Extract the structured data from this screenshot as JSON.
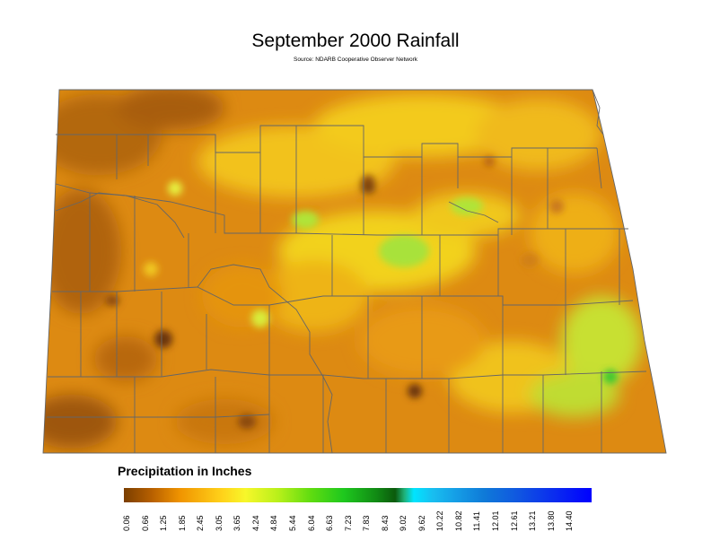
{
  "map": {
    "title": "September 2000 Rainfall",
    "subtitle": "Source: NDARB Cooperative Observer Network"
  },
  "legend": {
    "title": "Precipitation in Inches",
    "ticks": [
      "0.06",
      "0.66",
      "1.25",
      "1.85",
      "2.45",
      "3.05",
      "3.65",
      "4.24",
      "4.84",
      "5.44",
      "6.04",
      "6.63",
      "7.23",
      "7.83",
      "8.43",
      "9.02",
      "9.62",
      "10.22",
      "10.82",
      "11.41",
      "12.01",
      "12.61",
      "13.21",
      "13.80",
      "14.40"
    ]
  }
}
